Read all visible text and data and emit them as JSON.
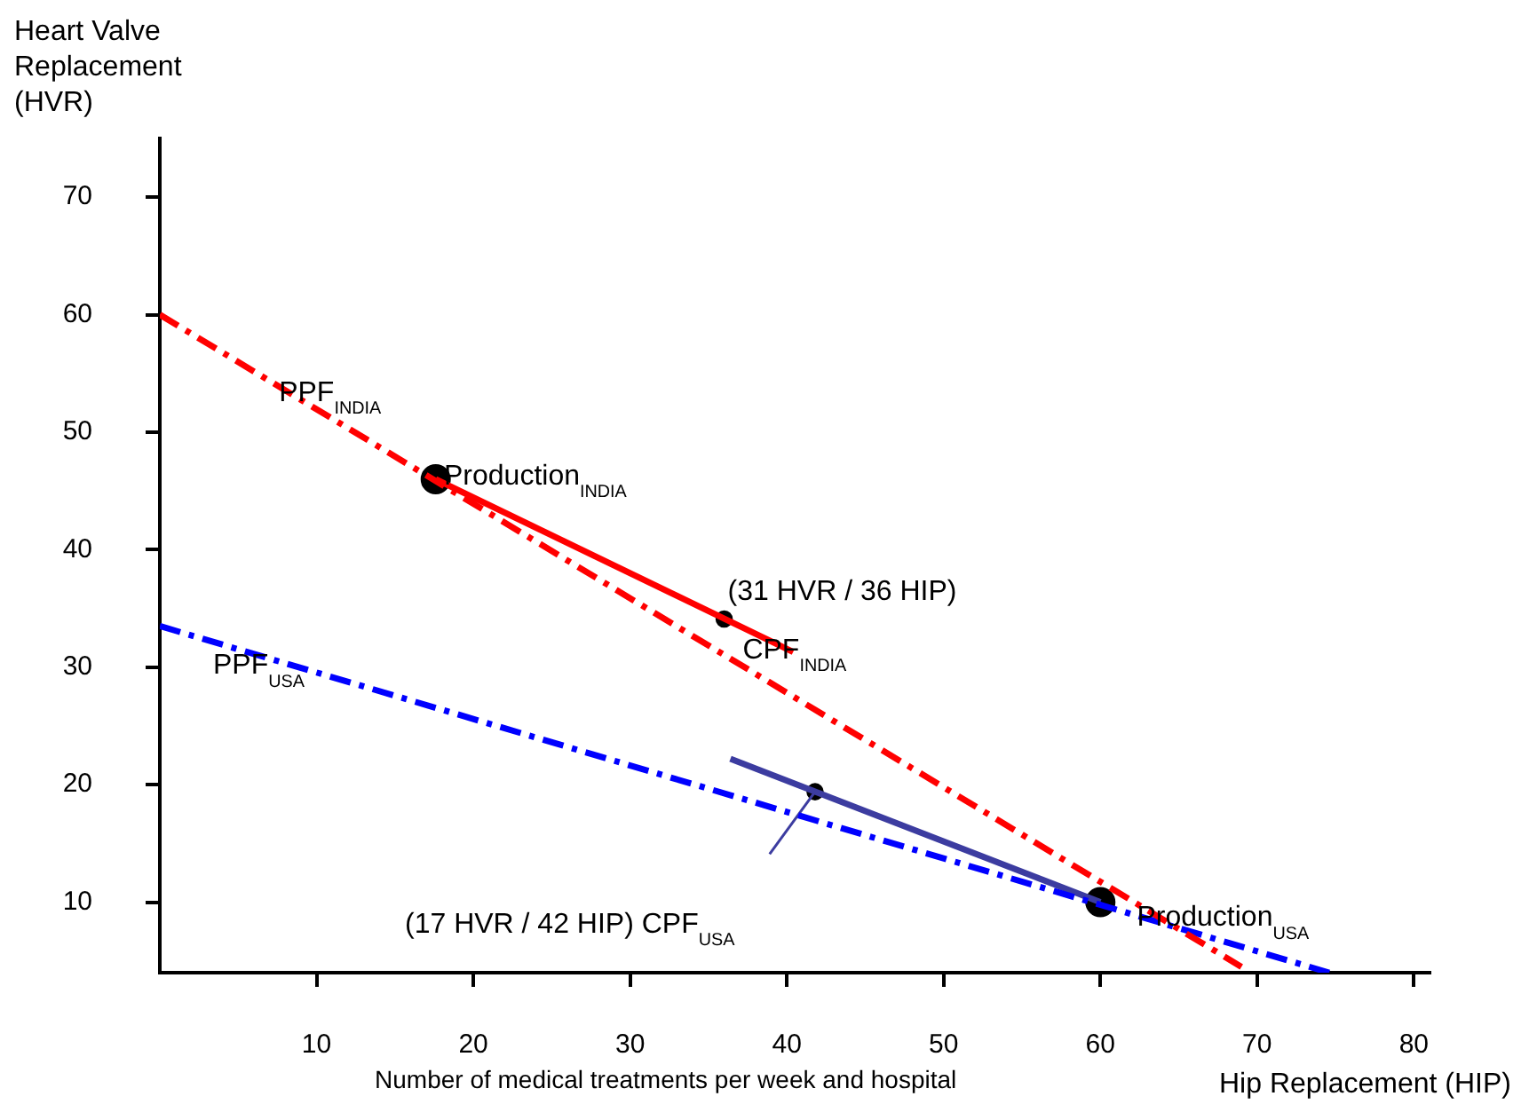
{
  "chart_data": {
    "type": "line",
    "xlabel": "Hip Replacement (HIP)",
    "ylabel": "Heart Valve Replacement (HVR)",
    "xlim": [
      0,
      81
    ],
    "ylim": [
      4,
      75
    ],
    "xticks": [
      10,
      20,
      30,
      40,
      50,
      60,
      70,
      80
    ],
    "yticks": [
      10,
      20,
      30,
      40,
      50,
      60,
      70
    ],
    "grid": false,
    "legend": false,
    "series": [
      {
        "color": "#ff0000",
        "line_style": "dashed",
        "x": [
          0,
          69
        ],
        "values": [
          60,
          4.5
        ]
      },
      {
        "color": "#0000ff",
        "line_style": "dashed",
        "x": [
          0,
          74.6
        ],
        "values": [
          33.5,
          4
        ]
      },
      {
        "color": "#ff0000",
        "line_style": "solid",
        "x": [
          17.6,
          40.4
        ],
        "values": [
          46,
          31.3
        ]
      },
      {
        "color": "#3c3ca0",
        "line_style": "solid",
        "x": [
          36.4,
          60
        ],
        "values": [
          22.2,
          10
        ]
      },
      {
        "color": "#3c3ca0",
        "line_style": "solid",
        "x": [
          38.9,
          41.8
        ],
        "values": [
          14.1,
          19.4
        ]
      },
      {
        "type": "bubble",
        "color": "#000000",
        "marker": "circle",
        "x": [
          17.6,
          60,
          36,
          41.8
        ],
        "values": [
          46,
          10,
          34.1,
          19.4
        ],
        "sizes": [
          1,
          1,
          0.3,
          0.3
        ]
      }
    ],
    "annotations": [
      {
        "text": "PPF$_{INDIA}$",
        "x": 7.6,
        "y": 53.3
      },
      {
        "text": "Production$_{INDIA}$",
        "x": 17.9,
        "y": 46.2
      },
      {
        "text": "(31 HVR / 36 HIP)",
        "x": 36,
        "y": 34.1
      },
      {
        "text": "CPF$_{INDIA}$",
        "x": 36.5,
        "y": 32.9
      },
      {
        "text": "PPF$_{USA}$",
        "x": 3.4,
        "y": 32.2
      },
      "(17 HVR / 42 HIP) CPF$_{USA}$",
      {
        "text": "Production$_{USA}$",
        "x": 61.2,
        "y": 9.1
      },
      "Number of medical treatments per week and hospital"
    ]
  }
}
